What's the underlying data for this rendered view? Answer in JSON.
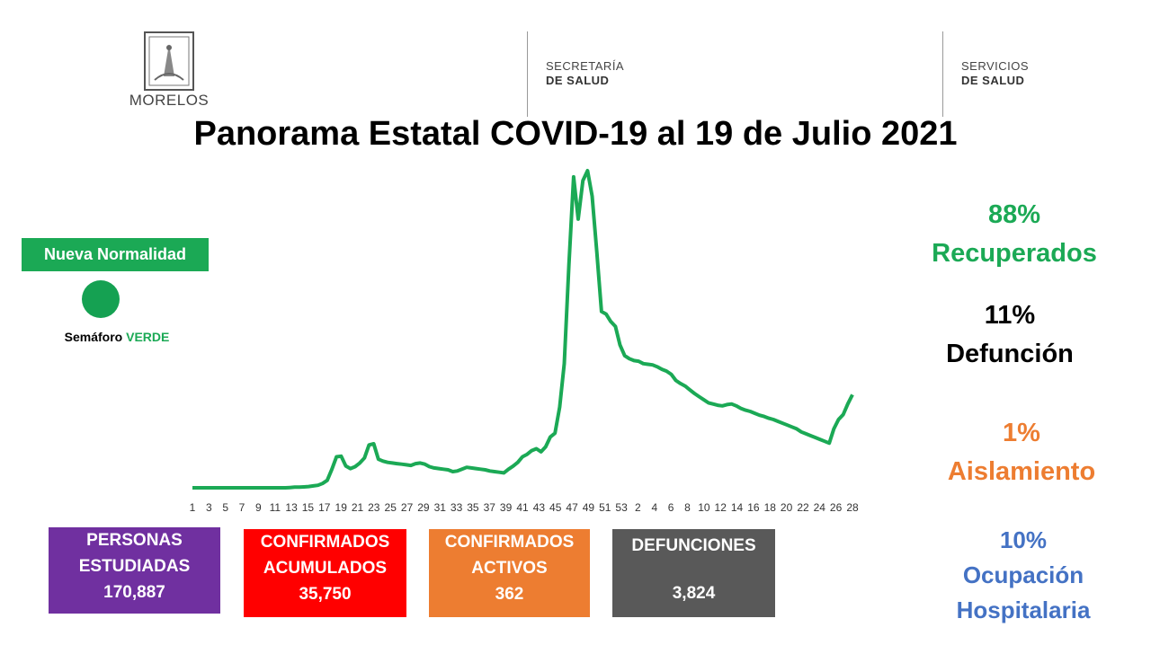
{
  "header": {
    "state_logo_text": "MORELOS",
    "agency1_line1": "SECRETARÍA",
    "agency1_line2": "DE SALUD",
    "agency2_line1": "SERVICIOS",
    "agency2_line2": "DE SALUD"
  },
  "title": "Panorama Estatal COVID-19 al 19 de Julio 2021",
  "left_panel": {
    "status_label": "Nueva Normalidad",
    "semaforo_prefix": "Semáforo ",
    "semaforo_color_word": "VERDE",
    "semaforo_color": "#15a152"
  },
  "stats": {
    "recuperados": {
      "pct": "88%",
      "label": "Recuperados",
      "color": "#1ba955"
    },
    "defuncion": {
      "pct": "11%",
      "label": "Defunción",
      "color": "#000000"
    },
    "aislamiento": {
      "pct": "1%",
      "label": "Aislamiento",
      "color": "#ed7d31"
    },
    "ocupacion": {
      "pct": "10%",
      "label1": "Ocupación",
      "label2": "Hospitalaria",
      "color": "#4472c4"
    }
  },
  "boxes": [
    {
      "line1": "PERSONAS",
      "line2": "ESTUDIADAS",
      "value": "170,887",
      "color": "#7030a0"
    },
    {
      "line1": "CONFIRMADOS",
      "line2": "ACUMULADOS",
      "value": "35,750",
      "color": "#ff0000"
    },
    {
      "line1": "CONFIRMADOS",
      "line2": "ACTIVOS",
      "value": "362",
      "color": "#ed7d31"
    },
    {
      "line1": "DEFUNCIONES",
      "line2": "",
      "value": "3,824",
      "color": "#595959"
    }
  ],
  "chart_data": {
    "type": "line",
    "color": "#1ba955",
    "title": "",
    "xlabel": "",
    "ylabel": "",
    "grid": false,
    "legend": "none",
    "x_ticks": [
      "1",
      "3",
      "5",
      "7",
      "9",
      "11",
      "13",
      "15",
      "17",
      "19",
      "21",
      "23",
      "25",
      "27",
      "29",
      "31",
      "33",
      "35",
      "37",
      "39",
      "41",
      "43",
      "45",
      "47",
      "49",
      "51",
      "53",
      "2",
      "4",
      "6",
      "8",
      "10",
      "12",
      "14",
      "16",
      "18",
      "20",
      "22",
      "24",
      "26",
      "28"
    ],
    "series": [
      {
        "values": [
          0,
          0,
          0,
          0,
          0,
          0,
          0,
          0,
          0,
          0,
          0,
          0,
          0,
          0,
          0,
          0,
          0,
          0,
          0,
          0,
          0,
          0.5,
          1,
          1,
          1.5,
          2,
          3,
          4,
          7,
          12,
          30,
          50,
          51,
          35,
          31,
          34,
          40,
          48,
          69,
          71,
          46,
          43,
          41,
          40,
          39,
          38,
          37,
          36,
          39,
          40,
          38,
          34,
          32,
          31,
          30,
          29,
          26,
          27,
          30,
          33,
          32,
          31,
          30,
          29,
          27,
          26,
          25,
          24,
          30,
          35,
          41,
          50,
          54,
          60,
          63,
          58,
          66,
          82,
          88,
          130,
          200,
          360,
          501,
          433,
          495,
          511,
          470,
          380,
          284,
          280,
          268,
          260,
          230,
          213,
          208,
          205,
          204,
          200,
          199,
          198,
          195,
          191,
          188,
          183,
          173,
          168,
          164,
          158,
          152,
          147,
          142,
          137,
          135,
          133,
          132,
          134,
          135,
          132,
          128,
          125,
          123,
          120,
          117,
          115,
          112,
          110,
          107,
          104,
          101,
          98,
          95,
          90,
          87,
          84,
          81,
          78,
          75,
          72,
          95,
          110,
          118,
          135,
          150
        ]
      }
    ]
  }
}
